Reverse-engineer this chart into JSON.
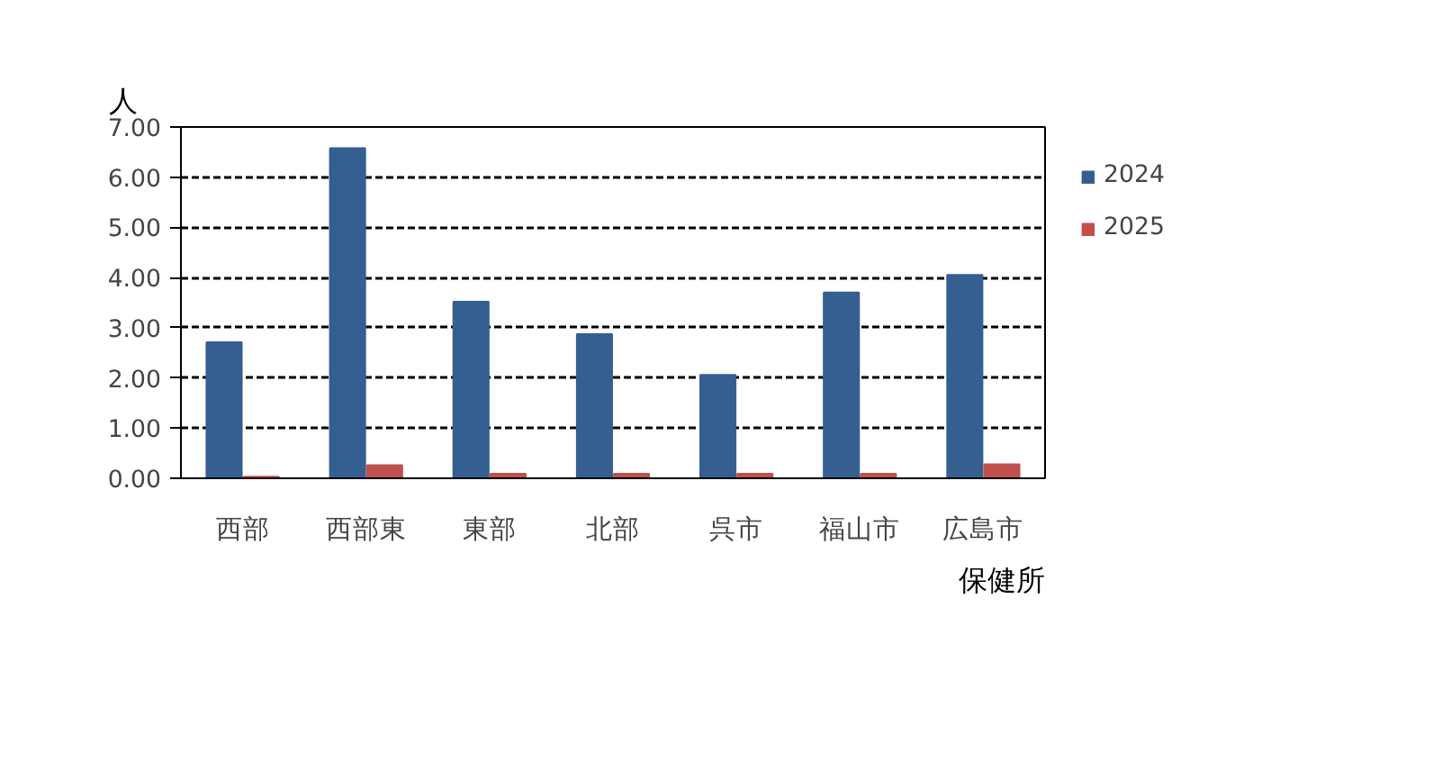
{
  "chart_data": {
    "type": "bar",
    "ylabel": "人",
    "xlabel": "保健所",
    "categories": [
      "西部",
      "西部東",
      "東部",
      "北部",
      "呉市",
      "福山市",
      "広島市"
    ],
    "series": [
      {
        "name": "2024",
        "color": "#355e91",
        "values": [
          2.71,
          6.58,
          3.52,
          2.87,
          2.06,
          3.7,
          4.05
        ]
      },
      {
        "name": "2025",
        "color": "#c0504d",
        "values": [
          0.03,
          0.26,
          0.09,
          0.09,
          0.09,
          0.09,
          0.28
        ]
      }
    ],
    "ylim": [
      0,
      7
    ],
    "yticks": [
      {
        "value": 0,
        "label": "0.00"
      },
      {
        "value": 1,
        "label": "1.00"
      },
      {
        "value": 2,
        "label": "2.00"
      },
      {
        "value": 3,
        "label": "3.00"
      },
      {
        "value": 4,
        "label": "4.00"
      },
      {
        "value": 5,
        "label": "5.00"
      },
      {
        "value": 6,
        "label": "6.00"
      },
      {
        "value": 7,
        "label": "7.00"
      }
    ],
    "grid": "y",
    "legend": "right"
  }
}
